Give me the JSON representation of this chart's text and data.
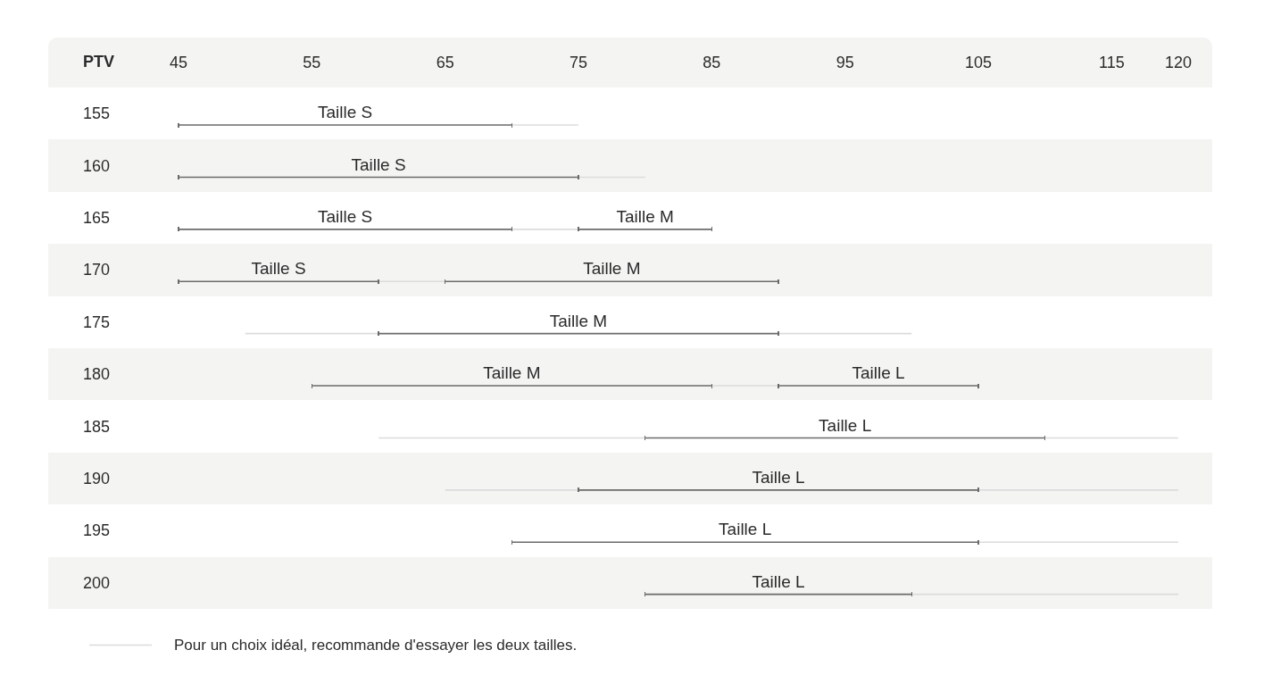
{
  "chart_data": {
    "type": "bar",
    "orientation": "horizontal",
    "ylabel": "PTV",
    "categories": [
      "155",
      "160",
      "165",
      "170",
      "175",
      "180",
      "185",
      "190",
      "195",
      "200"
    ],
    "xlim": [
      45,
      120
    ],
    "xticks": [
      45,
      55,
      65,
      75,
      85,
      95,
      105,
      115,
      120
    ],
    "series": [
      {
        "name": "Pour un choix idéal, recommande d'essayer les deux tailles.",
        "color": "#dcdcdc",
        "base": [
          70,
          75,
          70,
          60,
          50,
          85,
          60,
          65,
          null,
          null
        ],
        "values": [
          5,
          5,
          5,
          5,
          10,
          5,
          20,
          10,
          null,
          null
        ]
      },
      {
        "color": "#dcdcdc",
        "base": [
          null,
          null,
          null,
          null,
          90,
          null,
          110,
          105,
          105,
          100
        ],
        "values": [
          null,
          null,
          null,
          null,
          10,
          null,
          10,
          15,
          15,
          20
        ]
      },
      {
        "color": "#6b6b6b",
        "base": [
          45,
          45,
          45,
          45,
          null,
          null,
          null,
          null,
          null,
          null
        ],
        "values": [
          25,
          30,
          25,
          15,
          null,
          null,
          null,
          null,
          null,
          null
        ],
        "value_labels": [
          "Taille S",
          "Taille S",
          "Taille S",
          "Taille S",
          null,
          null,
          null,
          null,
          null,
          null
        ]
      },
      {
        "color": "#6b6b6b",
        "base": [
          null,
          null,
          75,
          65,
          60,
          55,
          null,
          null,
          null,
          null
        ],
        "values": [
          null,
          null,
          10,
          25,
          30,
          30,
          null,
          null,
          null,
          null
        ],
        "value_labels": [
          null,
          null,
          "Taille M",
          "Taille M",
          "Taille M",
          "Taille M",
          null,
          null,
          null,
          null
        ]
      },
      {
        "color": "#6b6b6b",
        "base": [
          null,
          null,
          null,
          null,
          null,
          90,
          80,
          75,
          70,
          80
        ],
        "values": [
          null,
          null,
          null,
          null,
          null,
          15,
          30,
          30,
          35,
          20
        ],
        "value_labels": [
          null,
          null,
          null,
          null,
          null,
          "Taille L",
          "Taille L",
          "Taille L",
          "Taille L",
          "Taille L"
        ]
      }
    ],
    "legend": "bottom left"
  }
}
